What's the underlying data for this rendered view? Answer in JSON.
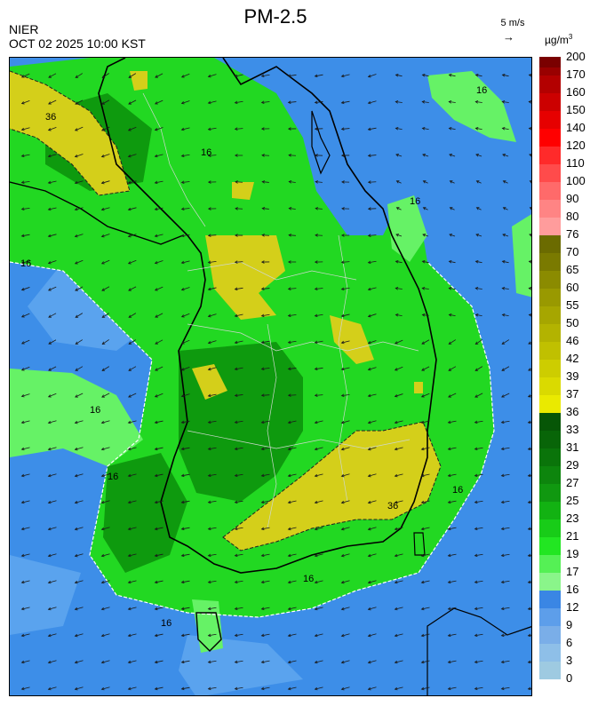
{
  "header": {
    "title": "PM-2.5",
    "agency": "NIER",
    "datetime": "OCT 02 2025 10:00 KST",
    "wind_reference": "5 m/s",
    "wind_arrow_icon": "arrow-right-icon"
  },
  "legend": {
    "unit_main": "µg/m",
    "unit_sup": "3",
    "levels": [
      {
        "label": "0",
        "color": "#9ecae1"
      },
      {
        "label": "3",
        "color": "#8ebfe8"
      },
      {
        "label": "6",
        "color": "#7aaee8"
      },
      {
        "label": "9",
        "color": "#5d9eea"
      },
      {
        "label": "12",
        "color": "#3a86e4"
      },
      {
        "label": "16",
        "color": "#8af58a"
      },
      {
        "label": "17",
        "color": "#55f055"
      },
      {
        "label": "19",
        "color": "#22e622"
      },
      {
        "label": "21",
        "color": "#18cc18"
      },
      {
        "label": "23",
        "color": "#12b212"
      },
      {
        "label": "25",
        "color": "#109810"
      },
      {
        "label": "27",
        "color": "#0d850d"
      },
      {
        "label": "29",
        "color": "#0a740a"
      },
      {
        "label": "31",
        "color": "#086508"
      },
      {
        "label": "33",
        "color": "#065606"
      },
      {
        "label": "36",
        "color": "#eaea00"
      },
      {
        "label": "37",
        "color": "#dada00"
      },
      {
        "label": "39",
        "color": "#cdcd00"
      },
      {
        "label": "42",
        "color": "#c0c000"
      },
      {
        "label": "46",
        "color": "#b3b300"
      },
      {
        "label": "50",
        "color": "#a6a600"
      },
      {
        "label": "55",
        "color": "#999900"
      },
      {
        "label": "60",
        "color": "#8b8b00"
      },
      {
        "label": "65",
        "color": "#7a7a00"
      },
      {
        "label": "70",
        "color": "#6b6b00"
      },
      {
        "label": "76",
        "color": "#ff9c9c"
      },
      {
        "label": "80",
        "color": "#ff8484"
      },
      {
        "label": "90",
        "color": "#ff6a6a"
      },
      {
        "label": "100",
        "color": "#ff4b4b"
      },
      {
        "label": "110",
        "color": "#ff2a2a"
      },
      {
        "label": "120",
        "color": "#ff0000"
      },
      {
        "label": "140",
        "color": "#e60000"
      },
      {
        "label": "150",
        "color": "#cc0000"
      },
      {
        "label": "160",
        "color": "#b30000"
      },
      {
        "label": "170",
        "color": "#990000"
      },
      {
        "label": "200",
        "color": "#7a0000"
      }
    ]
  },
  "map": {
    "contour_labels": [
      "16",
      "36"
    ],
    "colors": {
      "sea": "#3d8ee8",
      "low": "#5aa3ee",
      "green_light": "#66f266",
      "green": "#22d822",
      "green_dark": "#0e9a0e",
      "yellow": "#d4cf1a",
      "coast": "#000000",
      "boundary": "#cfd8cf"
    }
  }
}
